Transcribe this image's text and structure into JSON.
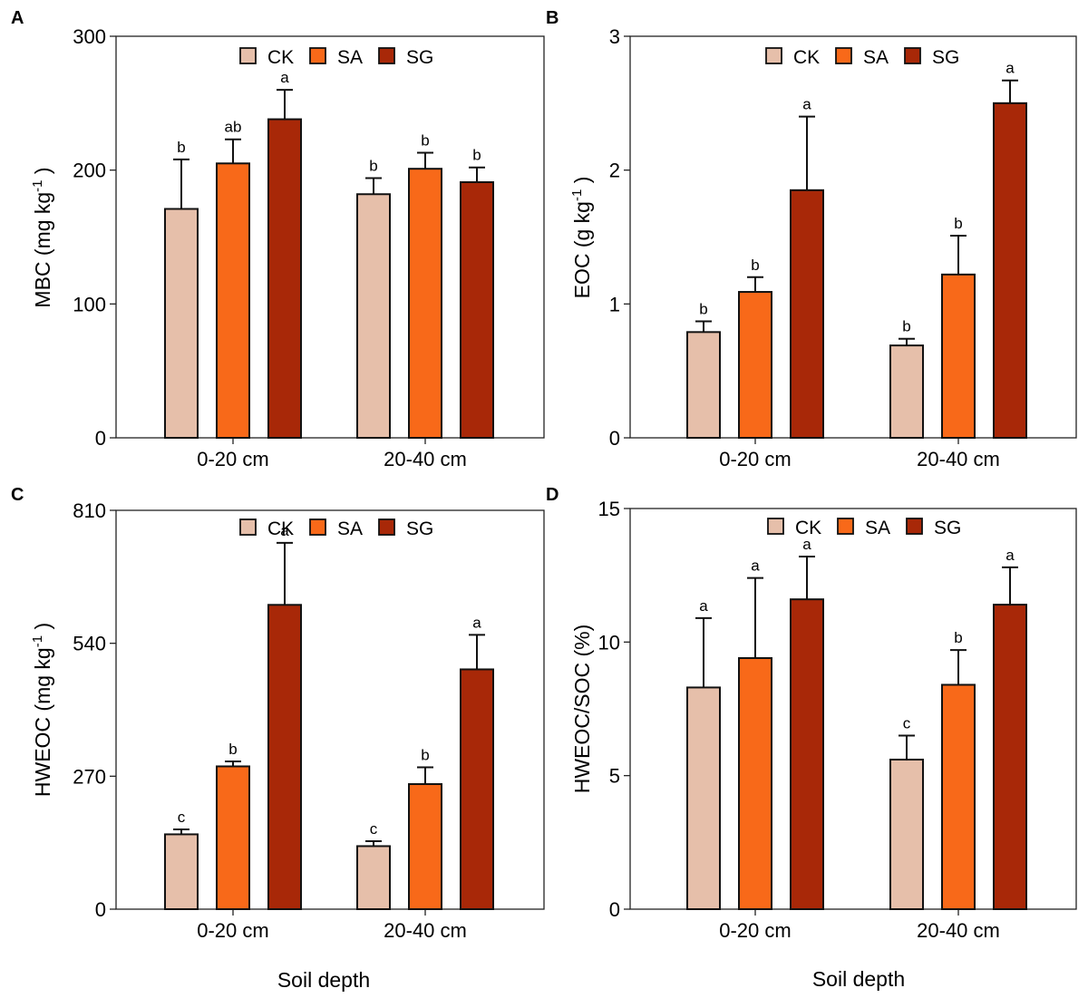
{
  "figure": {
    "x_title": "Soil depth",
    "series_colors": {
      "CK": "#e6bfaa",
      "SA": "#f86919",
      "SG": "#a82808"
    }
  },
  "chart_data": [
    {
      "panel": "A",
      "type": "bar",
      "ylabel": "MBC (mg kg-1)",
      "ylabel_text": "MBC (mg kg",
      "ylabel_sup": "-1",
      "ylabel_tail": ")",
      "ylim": [
        0,
        300
      ],
      "yticks": [
        0,
        100,
        200,
        300
      ],
      "categories": [
        "0-20 cm",
        "20-40 cm"
      ],
      "series": [
        {
          "name": "CK",
          "values": [
            171,
            182
          ],
          "errors": [
            37,
            12
          ],
          "letters": [
            "b",
            "b"
          ]
        },
        {
          "name": "SA",
          "values": [
            205,
            201
          ],
          "errors": [
            18,
            12
          ],
          "letters": [
            "ab",
            "b"
          ]
        },
        {
          "name": "SG",
          "values": [
            238,
            191
          ],
          "errors": [
            22,
            11
          ],
          "letters": [
            "a",
            "b"
          ]
        }
      ]
    },
    {
      "panel": "B",
      "type": "bar",
      "ylabel": "EOC (g kg-1)",
      "ylabel_text": "EOC (g kg",
      "ylabel_sup": "-1",
      "ylabel_tail": ")",
      "ylim": [
        0,
        3
      ],
      "yticks": [
        0,
        1,
        2,
        3
      ],
      "categories": [
        "0-20 cm",
        "20-40 cm"
      ],
      "series": [
        {
          "name": "CK",
          "values": [
            0.79,
            0.69
          ],
          "errors": [
            0.08,
            0.05
          ],
          "letters": [
            "b",
            "b"
          ]
        },
        {
          "name": "SA",
          "values": [
            1.09,
            1.22
          ],
          "errors": [
            0.11,
            0.29
          ],
          "letters": [
            "b",
            "b"
          ]
        },
        {
          "name": "SG",
          "values": [
            1.85,
            2.5
          ],
          "errors": [
            0.55,
            0.17
          ],
          "letters": [
            "a",
            "a"
          ]
        }
      ]
    },
    {
      "panel": "C",
      "type": "bar",
      "ylabel": "HWEOC (mg kg-1)",
      "ylabel_text": "HWEOC (mg kg",
      "ylabel_sup": "-1",
      "ylabel_tail": ")",
      "ylim": [
        0,
        810
      ],
      "yticks": [
        0,
        270,
        540,
        810
      ],
      "categories": [
        "0-20 cm",
        "20-40 cm"
      ],
      "series": [
        {
          "name": "CK",
          "values": [
            152,
            128
          ],
          "errors": [
            10,
            10
          ],
          "letters": [
            "c",
            "c"
          ]
        },
        {
          "name": "SA",
          "values": [
            290,
            254
          ],
          "errors": [
            10,
            34
          ],
          "letters": [
            "b",
            "b"
          ]
        },
        {
          "name": "SG",
          "values": [
            618,
            487
          ],
          "errors": [
            126,
            70
          ],
          "letters": [
            "a",
            "a"
          ]
        }
      ]
    },
    {
      "panel": "D",
      "type": "bar",
      "ylabel": "HWEOC/SOC (%)",
      "ylabel_text": "HWEOC/SOC (%)",
      "ylabel_sup": "",
      "ylabel_tail": "",
      "ylim": [
        0,
        15
      ],
      "yticks": [
        0,
        5,
        10,
        15
      ],
      "categories": [
        "0-20 cm",
        "20-40 cm"
      ],
      "series": [
        {
          "name": "CK",
          "values": [
            8.3,
            5.6
          ],
          "errors": [
            2.6,
            0.9
          ],
          "letters": [
            "a",
            "c"
          ]
        },
        {
          "name": "SA",
          "values": [
            9.4,
            8.4
          ],
          "errors": [
            3.0,
            1.3
          ],
          "letters": [
            "a",
            "b"
          ]
        },
        {
          "name": "SG",
          "values": [
            11.6,
            11.4
          ],
          "errors": [
            1.6,
            1.4
          ],
          "letters": [
            "a",
            "a"
          ]
        }
      ]
    }
  ]
}
